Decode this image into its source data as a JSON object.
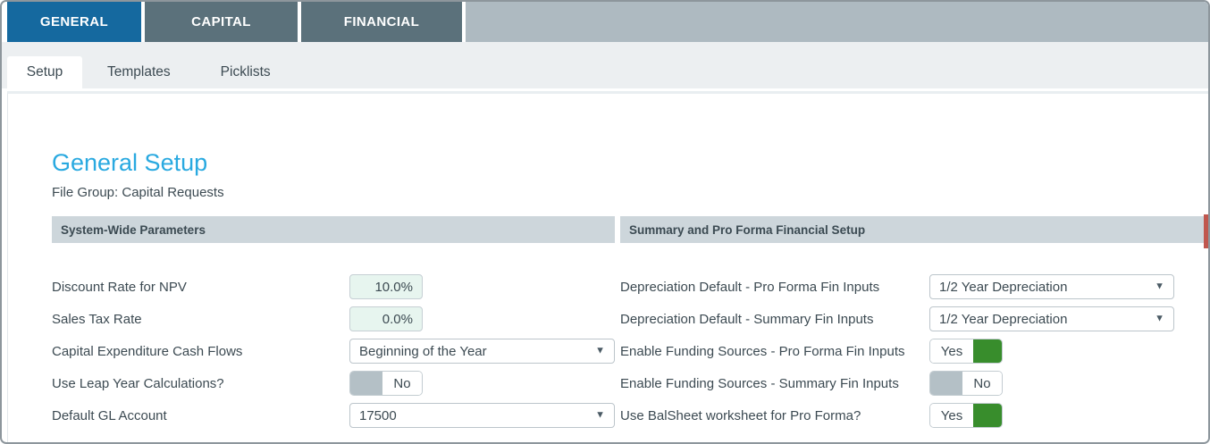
{
  "tabs": {
    "items": [
      {
        "label": "GENERAL",
        "active": true
      },
      {
        "label": "CAPITAL",
        "active": false
      },
      {
        "label": "FINANCIAL",
        "active": false
      }
    ]
  },
  "subtabs": {
    "items": [
      {
        "label": "Setup",
        "active": true
      },
      {
        "label": "Templates",
        "active": false
      },
      {
        "label": "Picklists",
        "active": false
      }
    ]
  },
  "page": {
    "title": "General Setup",
    "subtitle": "File Group: Capital Requests"
  },
  "icons": {
    "dropdown_caret": "▼"
  },
  "panels": {
    "left": {
      "header": "System-Wide Parameters",
      "rows": [
        {
          "label": "Discount Rate for NPV",
          "control": "input",
          "value": "10.0%"
        },
        {
          "label": "Sales Tax Rate",
          "control": "input",
          "value": "0.0%"
        },
        {
          "label": "Capital Expenditure Cash Flows",
          "control": "select",
          "value": "Beginning of the Year"
        },
        {
          "label": "Use Leap Year Calculations?",
          "control": "toggle",
          "value": "No"
        },
        {
          "label": "Default GL Account",
          "control": "select",
          "value": "17500"
        }
      ]
    },
    "right": {
      "header": "Summary and Pro Forma Financial Setup",
      "rows": [
        {
          "label": "Depreciation Default - Pro Forma Fin Inputs",
          "control": "select",
          "value": "1/2 Year Depreciation"
        },
        {
          "label": "Depreciation Default - Summary Fin Inputs",
          "control": "select",
          "value": "1/2 Year Depreciation"
        },
        {
          "label": "Enable Funding Sources - Pro Forma Fin Inputs",
          "control": "toggle",
          "value": "Yes"
        },
        {
          "label": "Enable Funding Sources - Summary Fin Inputs",
          "control": "toggle",
          "value": "No"
        },
        {
          "label": "Use BalSheet worksheet for Pro Forma?",
          "control": "toggle",
          "value": "Yes"
        }
      ]
    }
  },
  "colors": {
    "tab_active_bg": "#15699F",
    "tab_inactive_bg": "#5B717B",
    "tab_filler_bg": "#AEBAC1",
    "subtab_bar_bg": "#ECEFF1",
    "panel_header_bg": "#CDD6DB",
    "heading_color": "#29A9E0",
    "text_color": "#3C4A52",
    "input_bg": "#E7F5EF",
    "border_color": "#C3CCD1",
    "toggle_on": "#388D2C",
    "toggle_off_knob": "#B4C0C6",
    "frame_border": "#8D969C",
    "scroll_thumb": "#C0574E"
  }
}
